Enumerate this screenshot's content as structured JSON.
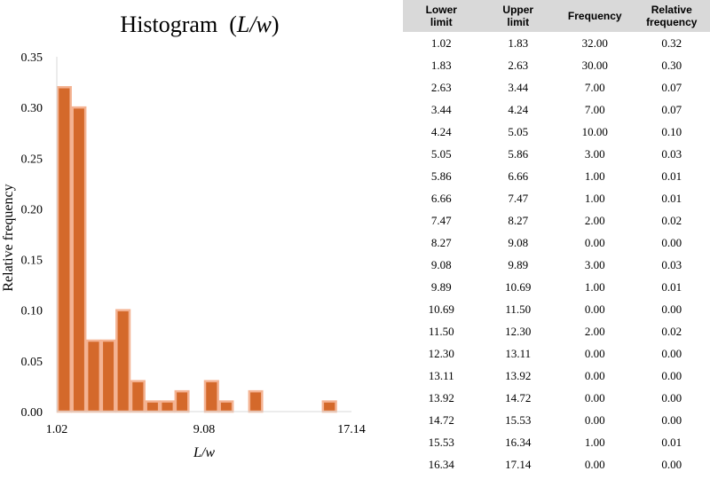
{
  "chart_data": {
    "type": "bar",
    "title": "Histogram",
    "title_var": "L/w",
    "xlabel": "L/w",
    "ylabel": "Relative frequency",
    "ylim": [
      0,
      0.35
    ],
    "yticks": [
      "0.00",
      "0.05",
      "0.10",
      "0.15",
      "0.20",
      "0.25",
      "0.30",
      "0.35"
    ],
    "xticks": [
      "1.02",
      "9.08",
      "17.14"
    ],
    "xlim": [
      1.02,
      17.14
    ],
    "bin_edges": [
      1.02,
      1.83,
      2.63,
      3.44,
      4.24,
      5.05,
      5.86,
      6.66,
      7.47,
      8.27,
      9.08,
      9.89,
      10.69,
      11.5,
      12.3,
      13.11,
      13.92,
      14.72,
      15.53,
      16.34,
      17.14
    ],
    "values": [
      0.32,
      0.3,
      0.07,
      0.07,
      0.1,
      0.03,
      0.01,
      0.01,
      0.02,
      0.0,
      0.03,
      0.01,
      0.0,
      0.02,
      0.0,
      0.0,
      0.0,
      0.0,
      0.01,
      0.0
    ],
    "bar_color": "#d4692b",
    "bar_edge_color": "#f4b393",
    "grid": false
  },
  "table": {
    "headers": [
      "Lower\nlimit",
      "Upper\nlimit",
      "Frequency",
      "Relative\nfrequency"
    ],
    "rows": [
      [
        "1.02",
        "1.83",
        "32.00",
        "0.32"
      ],
      [
        "1.83",
        "2.63",
        "30.00",
        "0.30"
      ],
      [
        "2.63",
        "3.44",
        "7.00",
        "0.07"
      ],
      [
        "3.44",
        "4.24",
        "7.00",
        "0.07"
      ],
      [
        "4.24",
        "5.05",
        "10.00",
        "0.10"
      ],
      [
        "5.05",
        "5.86",
        "3.00",
        "0.03"
      ],
      [
        "5.86",
        "6.66",
        "1.00",
        "0.01"
      ],
      [
        "6.66",
        "7.47",
        "1.00",
        "0.01"
      ],
      [
        "7.47",
        "8.27",
        "2.00",
        "0.02"
      ],
      [
        "8.27",
        "9.08",
        "0.00",
        "0.00"
      ],
      [
        "9.08",
        "9.89",
        "3.00",
        "0.03"
      ],
      [
        "9.89",
        "10.69",
        "1.00",
        "0.01"
      ],
      [
        "10.69",
        "11.50",
        "0.00",
        "0.00"
      ],
      [
        "11.50",
        "12.30",
        "2.00",
        "0.02"
      ],
      [
        "12.30",
        "13.11",
        "0.00",
        "0.00"
      ],
      [
        "13.11",
        "13.92",
        "0.00",
        "0.00"
      ],
      [
        "13.92",
        "14.72",
        "0.00",
        "0.00"
      ],
      [
        "14.72",
        "15.53",
        "0.00",
        "0.00"
      ],
      [
        "15.53",
        "16.34",
        "1.00",
        "0.01"
      ],
      [
        "16.34",
        "17.14",
        "0.00",
        "0.00"
      ]
    ]
  }
}
